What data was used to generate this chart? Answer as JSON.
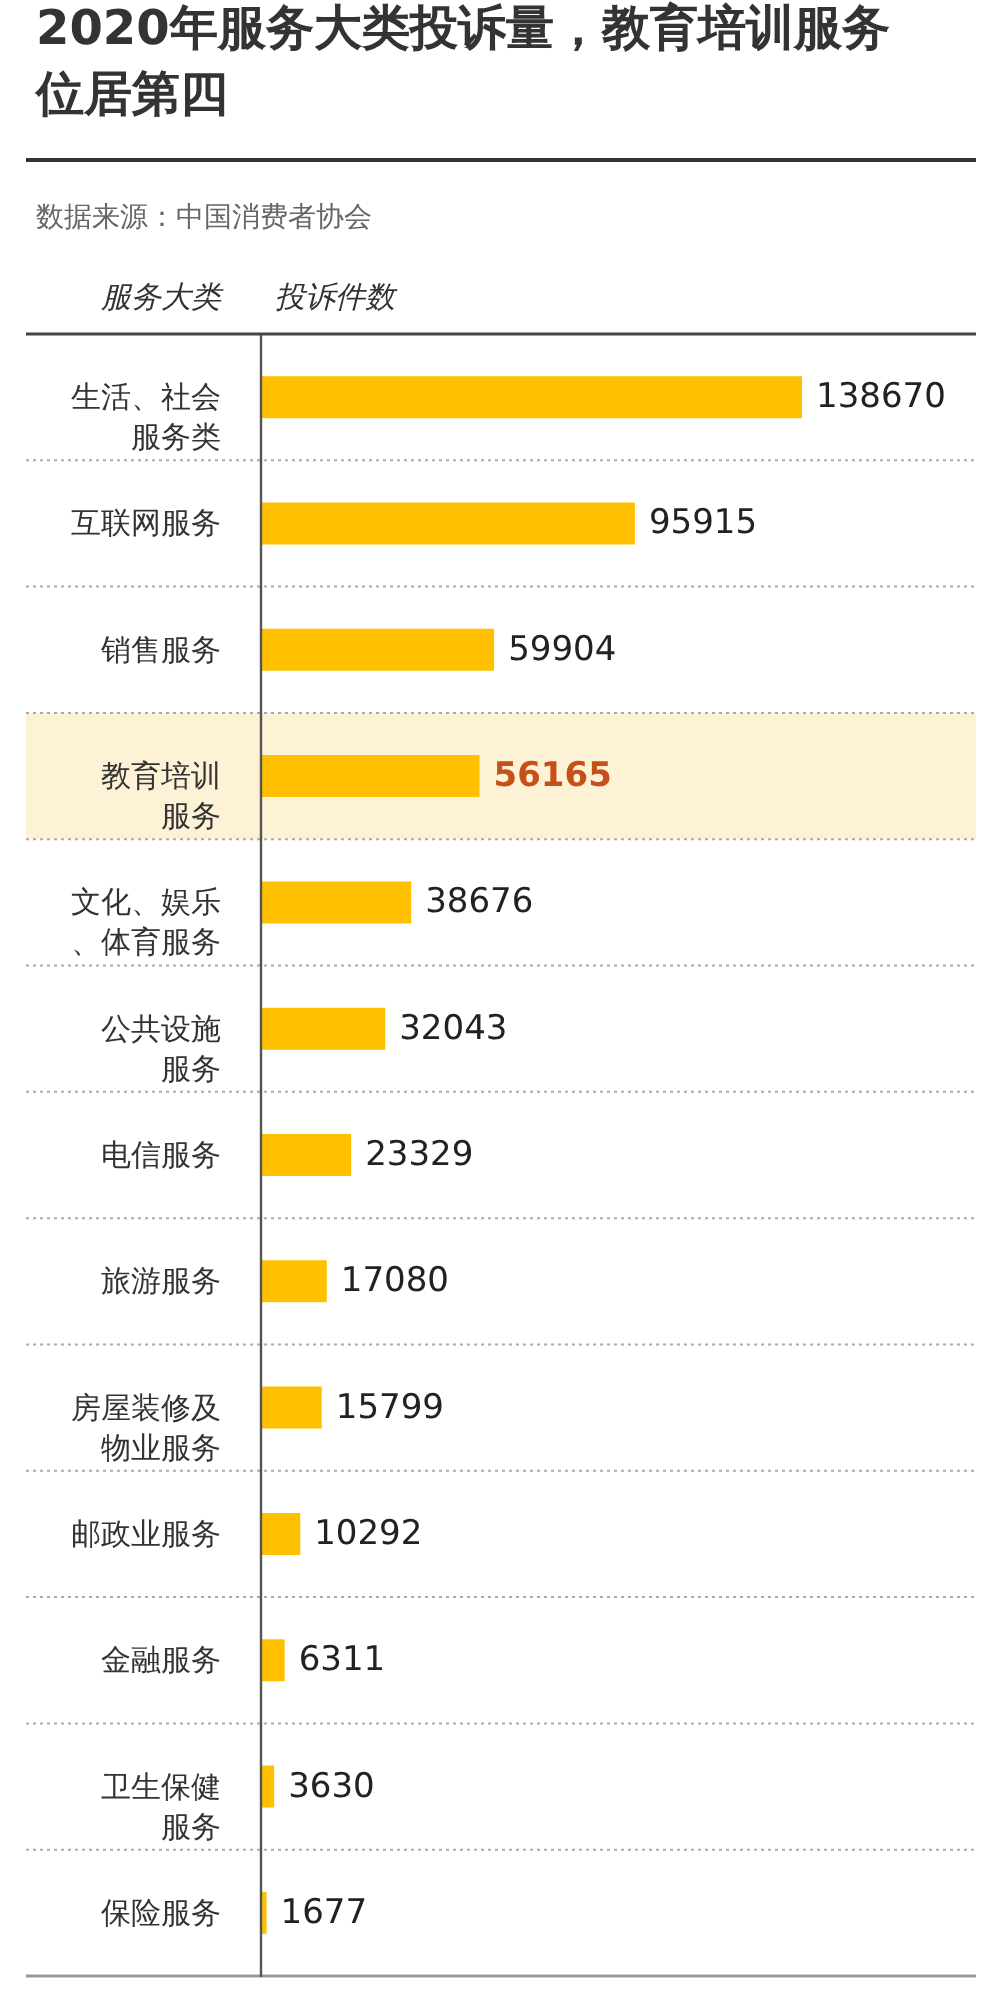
{
  "chart_data": {
    "type": "bar",
    "orientation": "horizontal",
    "title": "2020年服务大类投诉量，教育培训服务位居第四",
    "annotations": [
      "数据来源：中国消费者协会"
    ],
    "ylabel": "服务大类",
    "xlabel": "投诉件数",
    "categories": [
      "生活、社会服务类",
      "互联网服务",
      "销售服务",
      "教育培训服务",
      "文化、娱乐、体育服务",
      "公共设施服务",
      "电信服务",
      "旅游服务",
      "房屋装修及物业服务",
      "邮政业服务",
      "金融服务",
      "卫生保健服务",
      "保险服务"
    ],
    "values": [
      138670,
      95915,
      59904,
      56165,
      38676,
      32043,
      23329,
      17080,
      15799,
      10292,
      6311,
      3630,
      1677
    ],
    "color": "#ffc000",
    "data_labels": true,
    "tick_labels": "y",
    "grid": "y",
    "bands": [
      {
        "axis": "y",
        "from": "教育培训服务",
        "to": "教育培训服务",
        "color": "#fdf1d6"
      }
    ]
  }
}
